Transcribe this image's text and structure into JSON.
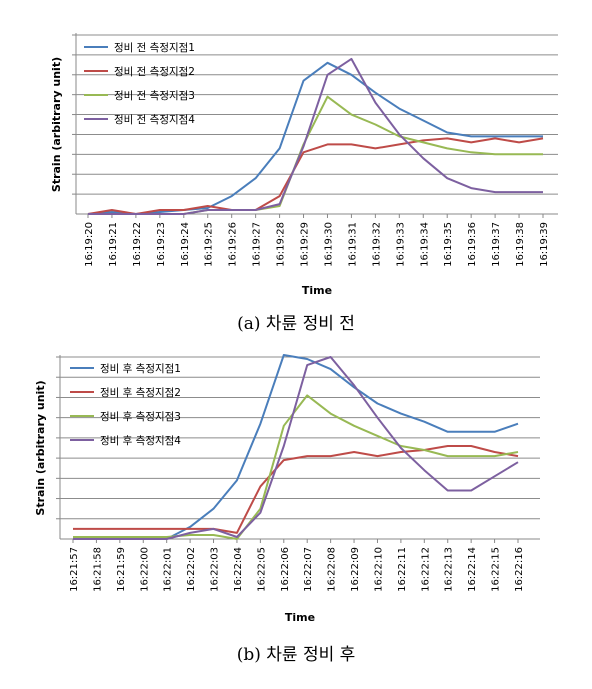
{
  "chart_data": [
    {
      "type": "line",
      "caption": "(a) 차륜 정비 전",
      "xlabel": "Time",
      "ylabel": "Strain (arbitrary unit)",
      "categories": [
        "16:19:20",
        "16:19:21",
        "16:19:22",
        "16:19:23",
        "16:19:24",
        "16:19:25",
        "16:19:26",
        "16:19:27",
        "16:19:28",
        "16:19:29",
        "16:19:30",
        "16:19:31",
        "16:19:32",
        "16:19:33",
        "16:19:34",
        "16:19:35",
        "16:19:36",
        "16:19:37",
        "16:19:38",
        "16:19:39"
      ],
      "ylim": [
        0,
        9
      ],
      "ygrid_count": 9,
      "grid": true,
      "legend_position": "top-left",
      "series": [
        {
          "name": "정비 전 측정지점1",
          "color": "#4a7ebb",
          "values": [
            0,
            0.1,
            0,
            0.1,
            0.2,
            0.3,
            0.9,
            1.8,
            3.3,
            6.7,
            7.6,
            7.0,
            6.1,
            5.3,
            4.7,
            4.1,
            3.9,
            3.9,
            3.9,
            3.9
          ]
        },
        {
          "name": "정비 전 측정지점2",
          "color": "#be4b48",
          "values": [
            0,
            0.2,
            0,
            0.2,
            0.2,
            0.4,
            0.2,
            0.2,
            0.9,
            3.1,
            3.5,
            3.5,
            3.3,
            3.5,
            3.7,
            3.8,
            3.6,
            3.8,
            3.6,
            3.8
          ]
        },
        {
          "name": "정비 전 측정지점3",
          "color": "#98b954",
          "values": [
            0,
            0,
            0,
            0,
            0,
            0.2,
            0.2,
            0.2,
            0.4,
            3.5,
            5.9,
            5.0,
            4.5,
            3.9,
            3.6,
            3.3,
            3.1,
            3.0,
            3.0,
            3.0
          ]
        },
        {
          "name": "정비 전 측정지점4",
          "color": "#7d60a0",
          "values": [
            0,
            0,
            0,
            0,
            0,
            0.2,
            0.2,
            0.2,
            0.5,
            3.4,
            7.0,
            7.8,
            5.6,
            4.0,
            2.8,
            1.8,
            1.3,
            1.1,
            1.1,
            1.1
          ]
        }
      ]
    },
    {
      "type": "line",
      "caption": "(b) 차륜 정비 후",
      "xlabel": "Time",
      "ylabel": "Strain (arbitrary unit)",
      "categories": [
        "16:21:57",
        "16:21:58",
        "16:21:59",
        "16:22:00",
        "16:22:01",
        "16:22:02",
        "16:22:03",
        "16:22:04",
        "16:22:05",
        "16:22:06",
        "16:22:07",
        "16:22:08",
        "16:22:09",
        "16:22:10",
        "16:22:11",
        "16:22:12",
        "16:22:13",
        "16:22:14",
        "16:22:15",
        "16:22:16"
      ],
      "ylim": [
        0,
        9
      ],
      "ygrid_count": 9,
      "grid": true,
      "legend_position": "top-left",
      "series": [
        {
          "name": "정비 후 측정지점1",
          "color": "#4a7ebb",
          "values": [
            0.1,
            0.1,
            0.1,
            0.1,
            0,
            0.6,
            1.5,
            2.9,
            5.7,
            9.1,
            8.9,
            8.4,
            7.5,
            6.7,
            6.2,
            5.8,
            5.3,
            5.3,
            5.3,
            5.7
          ]
        },
        {
          "name": "정비 후 측정지점2",
          "color": "#be4b48",
          "values": [
            0.5,
            0.5,
            0.5,
            0.5,
            0.5,
            0.5,
            0.5,
            0.3,
            2.6,
            3.9,
            4.1,
            4.1,
            4.3,
            4.1,
            4.3,
            4.4,
            4.6,
            4.6,
            4.3,
            4.1
          ]
        },
        {
          "name": "정비 후 측정지점3",
          "color": "#98b954",
          "values": [
            0.1,
            0.1,
            0.1,
            0.1,
            0.1,
            0.2,
            0.2,
            0,
            1.5,
            5.6,
            7.1,
            6.2,
            5.6,
            5.1,
            4.6,
            4.4,
            4.1,
            4.1,
            4.1,
            4.3
          ]
        },
        {
          "name": "정비 후 측정지점4",
          "color": "#7d60a0",
          "values": [
            0,
            0,
            0,
            0,
            0,
            0.3,
            0.5,
            0.1,
            1.3,
            4.6,
            8.6,
            9.0,
            7.6,
            6.0,
            4.5,
            3.4,
            2.4,
            2.4,
            3.1,
            3.8
          ]
        }
      ]
    }
  ]
}
